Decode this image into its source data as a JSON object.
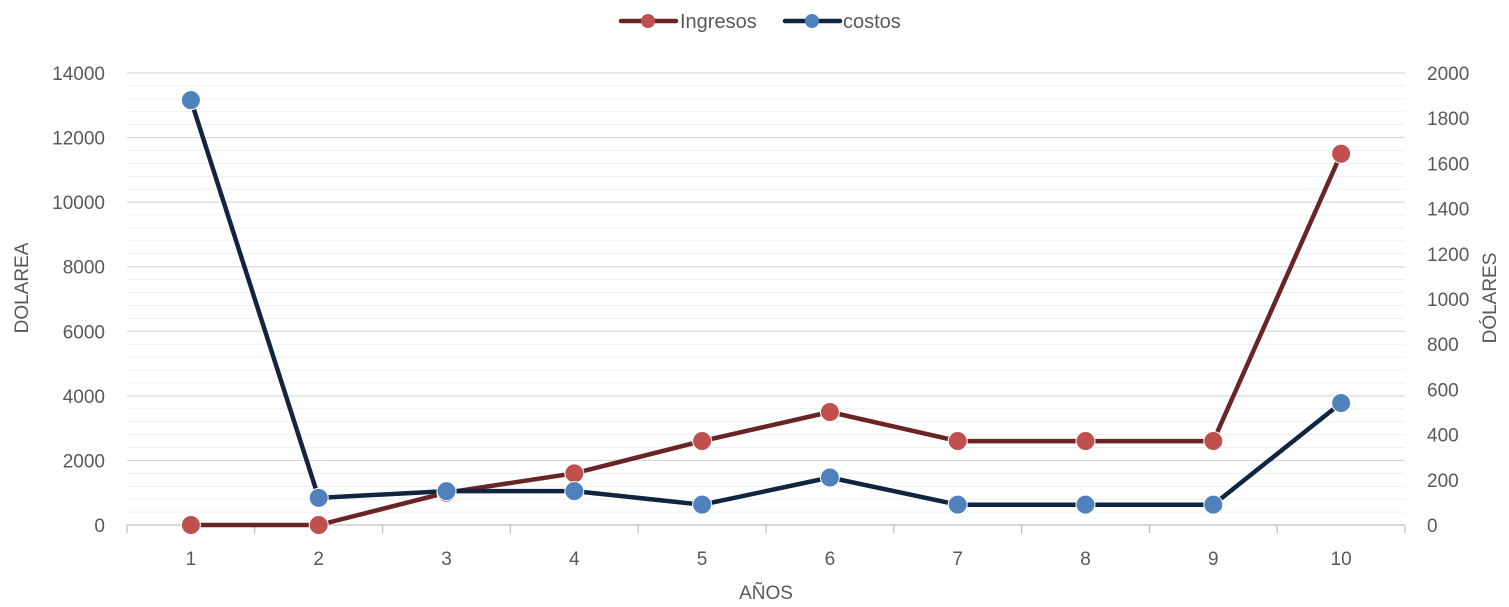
{
  "chart_data": {
    "type": "line",
    "title": "",
    "xlabel": "AÑOS",
    "ylabel": "DOLAREA",
    "y2label": "DÓLARES",
    "categories": [
      "1",
      "2",
      "3",
      "4",
      "5",
      "6",
      "7",
      "8",
      "9",
      "10"
    ],
    "ylim": [
      0,
      14000
    ],
    "yticks": [
      "0",
      "2000",
      "4000",
      "6000",
      "8000",
      "10000",
      "12000",
      "14000"
    ],
    "y2lim": [
      0,
      2000
    ],
    "y2ticks": [
      "0",
      "200",
      "400",
      "600",
      "800",
      "1000",
      "1200",
      "1400",
      "1600",
      "1800",
      "2000"
    ],
    "grid": true,
    "legend": "top",
    "series": [
      {
        "name": "Ingresos",
        "axis": "left",
        "color": "#6B2426",
        "marker_color": "#C0504D",
        "values": [
          0,
          0,
          1000,
          1600,
          2600,
          3500,
          2600,
          2600,
          2600,
          11500
        ]
      },
      {
        "name": "costos",
        "axis": "right",
        "color": "#10253F",
        "marker_color": "#4F81BD",
        "values": [
          1880,
          120,
          150,
          150,
          90,
          210,
          90,
          90,
          90,
          540
        ]
      }
    ]
  }
}
